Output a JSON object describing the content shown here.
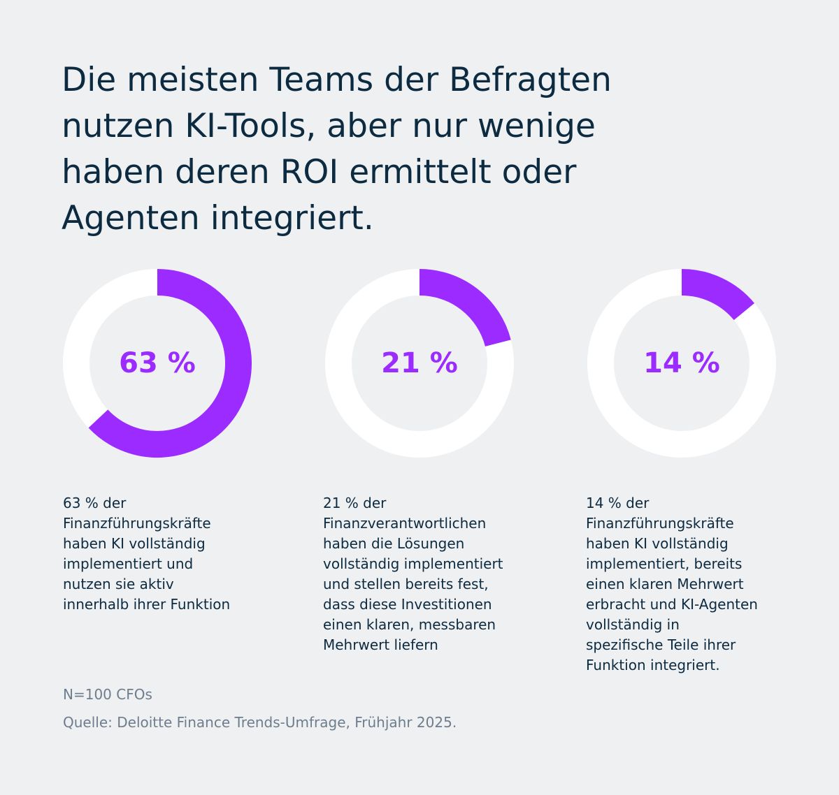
{
  "title": [
    "Die meisten Teams der Befragten",
    "nutzen KI-Tools, aber nur wenige",
    "haben deren ROI ermittelt oder",
    "Agenten integriert."
  ],
  "chart_data": [
    {
      "type": "donut",
      "values": [
        63
      ],
      "value_labels": [
        "63 %"
      ],
      "color": "#9b2bff",
      "description": [
        "63 % der",
        "Finanzführungskräfte",
        "haben KI vollständig",
        "implementiert und",
        "nutzen sie aktiv",
        "innerhalb ihrer Funktion"
      ]
    },
    {
      "type": "donut",
      "values": [
        21
      ],
      "value_labels": [
        "21 %"
      ],
      "color": "#9b2bff",
      "description": [
        "21 % der",
        "Finanzverantwortlichen",
        "haben die Lösungen",
        "vollständig implementiert",
        "und stellen bereits fest,",
        "dass diese Investitionen",
        "einen klaren, messbaren",
        "Mehrwert liefern"
      ]
    },
    {
      "type": "donut",
      "values": [
        14
      ],
      "value_labels": [
        "14 %"
      ],
      "color": "#9b2bff",
      "description": [
        "14 % der",
        "Finanzführungskräfte",
        "haben KI vollständig",
        "implementiert, bereits",
        "einen klaren Mehrwert",
        "erbracht und KI-Agenten",
        "vollständig in",
        "spezifische Teile ihrer",
        "Funktion integriert."
      ]
    }
  ],
  "note": "N=100 CFOs",
  "source": "Quelle: Deloitte Finance Trends-Umfrage, Frühjahr 2025."
}
